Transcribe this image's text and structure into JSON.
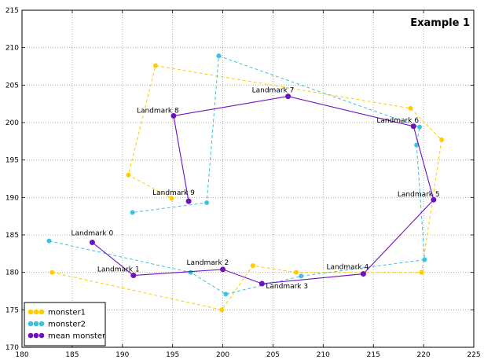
{
  "chart_data": {
    "type": "scatter",
    "title": "Example 1",
    "xlabel": "",
    "ylabel": "",
    "xlim": [
      180,
      225
    ],
    "ylim": [
      170,
      215
    ],
    "xticks": [
      180,
      185,
      190,
      195,
      200,
      205,
      210,
      215,
      220,
      225
    ],
    "yticks": [
      170,
      175,
      180,
      185,
      190,
      195,
      200,
      205,
      210,
      215
    ],
    "grid": true,
    "legend_position": "bottom-left",
    "landmarks": [
      "Landmark 0",
      "Landmark 1",
      "Landmark 2",
      "Landmark 3",
      "Landmark 4",
      "Landmark 5",
      "Landmark 6",
      "Landmark 7",
      "Landmark 8",
      "Landmark 9"
    ],
    "series": [
      {
        "name": "monster1",
        "color": "#FFCC00",
        "line_style": "dashed",
        "x": [
          183.0,
          199.9,
          203.0,
          207.3,
          219.8,
          221.8,
          218.7,
          193.3,
          190.6,
          194.9
        ],
        "y": [
          180.0,
          175.0,
          180.9,
          180.0,
          180.0,
          197.7,
          201.9,
          207.6,
          193.0,
          189.9
        ]
      },
      {
        "name": "monster2",
        "color": "#40C0E0",
        "line_style": "dashed",
        "x": [
          182.7,
          196.8,
          200.3,
          207.8,
          220.1,
          219.3,
          219.6,
          199.6,
          198.4,
          191.0
        ],
        "y": [
          184.2,
          180.0,
          177.1,
          179.5,
          181.7,
          197.0,
          199.4,
          208.9,
          189.3,
          188.0
        ]
      },
      {
        "name": "mean monster",
        "color": "#7010C0",
        "line_style": "solid",
        "x": [
          187.0,
          191.1,
          200.0,
          203.9,
          214.0,
          221.0,
          219.0,
          206.5,
          195.1,
          196.6
        ],
        "y": [
          184.0,
          179.6,
          180.4,
          178.5,
          179.8,
          189.7,
          199.5,
          203.5,
          200.9,
          189.5
        ]
      }
    ]
  }
}
